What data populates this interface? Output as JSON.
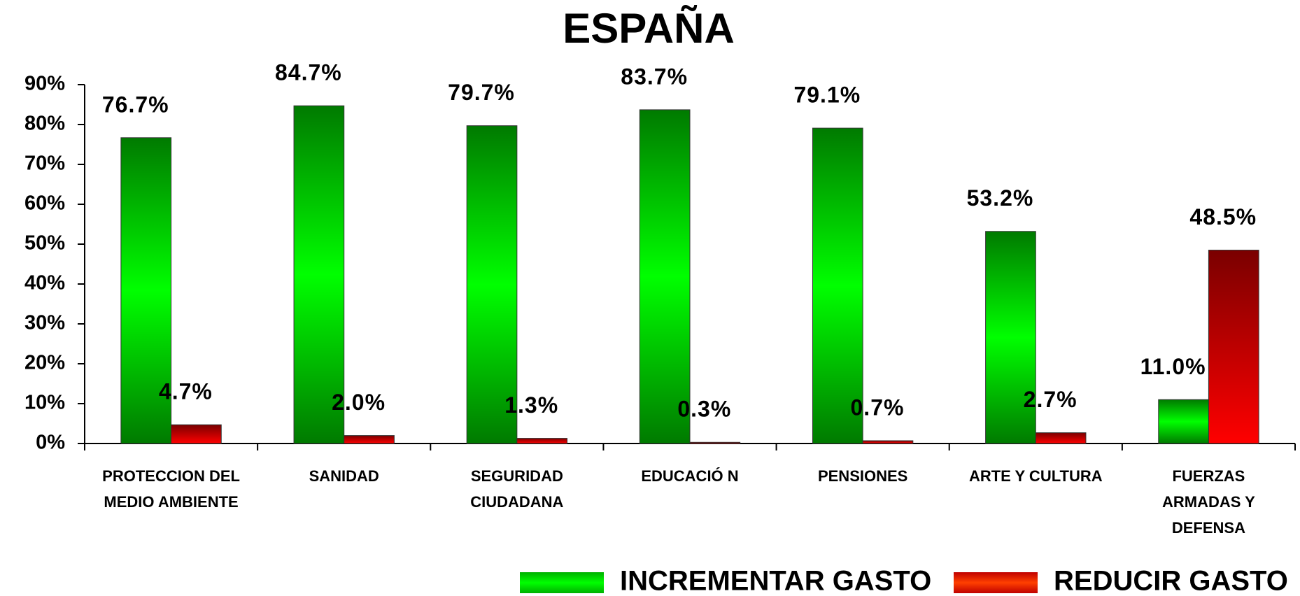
{
  "chart_data": {
    "type": "bar",
    "title": "ESPAÑA",
    "categories": [
      "PROTECCION DEL MEDIO AMBIENTE",
      "SANIDAD",
      "SEGURIDAD CIUDADANA",
      "EDUCACIÓ N",
      "PENSIONES",
      "ARTE Y CULTURA",
      "FUERZAS ARMADAS Y DEFENSA"
    ],
    "series": [
      {
        "name": "INCREMENTAR GASTO",
        "color": "#00ff00",
        "values": [
          76.7,
          84.7,
          79.7,
          83.7,
          79.1,
          53.2,
          11.0
        ],
        "value_labels": [
          "76.7%",
          "84.7%",
          "79.7%",
          "83.7%",
          "79.1%",
          "53.2%",
          "11.0%"
        ]
      },
      {
        "name": "REDUCIR GASTO",
        "color": "#ff0000",
        "values": [
          4.7,
          2.0,
          1.3,
          0.3,
          0.7,
          2.7,
          48.5
        ],
        "value_labels": [
          "4.7%",
          "2.0%",
          "1.3%",
          "0.3%",
          "0.7%",
          "2.7%",
          "48.5%"
        ]
      }
    ],
    "ylim": [
      0,
      90
    ],
    "yticks": [
      {
        "value": 0,
        "label": "0%"
      },
      {
        "value": 10,
        "label": "10%"
      },
      {
        "value": 20,
        "label": "20%"
      },
      {
        "value": 30,
        "label": "30%"
      },
      {
        "value": 40,
        "label": "40%"
      },
      {
        "value": 50,
        "label": "50%"
      },
      {
        "value": 60,
        "label": "60%"
      },
      {
        "value": 70,
        "label": "70%"
      },
      {
        "value": 80,
        "label": "80%"
      },
      {
        "value": 90,
        "label": "90%"
      }
    ],
    "legend": "bottom"
  }
}
